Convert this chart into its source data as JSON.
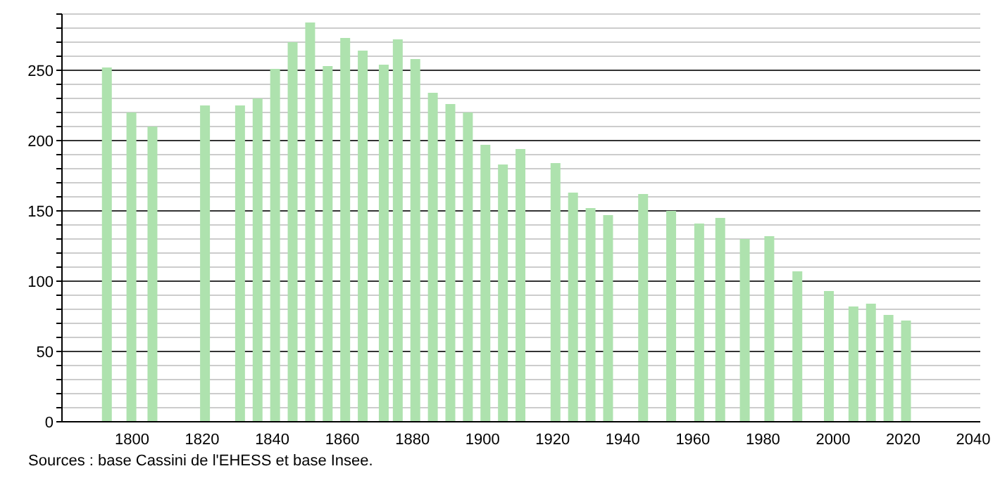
{
  "chart_data": {
    "type": "bar",
    "x": [
      1793,
      1800,
      1806,
      1821,
      1831,
      1836,
      1841,
      1846,
      1851,
      1856,
      1861,
      1866,
      1872,
      1876,
      1881,
      1886,
      1891,
      1896,
      1901,
      1906,
      1911,
      1921,
      1926,
      1931,
      1936,
      1946,
      1954,
      1962,
      1968,
      1975,
      1982,
      1990,
      1999,
      2006,
      2011,
      2016,
      2021
    ],
    "values": [
      252,
      220,
      210,
      225,
      225,
      230,
      251,
      270,
      284,
      253,
      273,
      264,
      254,
      272,
      258,
      234,
      226,
      220,
      197,
      183,
      194,
      184,
      163,
      152,
      147,
      162,
      150,
      141,
      145,
      130,
      132,
      107,
      93,
      82,
      84,
      76,
      72
    ],
    "color": "#aee2ae",
    "xlim": [
      1780,
      2042
    ],
    "xticks": [
      1800,
      1820,
      1840,
      1860,
      1880,
      1900,
      1920,
      1940,
      1960,
      1980,
      2000,
      2020,
      2040
    ],
    "ylim": [
      0,
      290
    ],
    "yticks": [
      0,
      {
        "value": 10,
        "label": null
      },
      {
        "value": 20,
        "label": null
      },
      {
        "value": 30,
        "label": null
      },
      {
        "value": 40,
        "label": null
      },
      50,
      {
        "value": 60,
        "label": null
      },
      {
        "value": 70,
        "label": null
      },
      {
        "value": 80,
        "label": null
      },
      {
        "value": 90,
        "label": null
      },
      100,
      {
        "value": 110,
        "label": null
      },
      {
        "value": 120,
        "label": null
      },
      {
        "value": 130,
        "label": null
      },
      {
        "value": 140,
        "label": null
      },
      150,
      {
        "value": 160,
        "label": null
      },
      {
        "value": 170,
        "label": null
      },
      {
        "value": 180,
        "label": null
      },
      {
        "value": 190,
        "label": null
      },
      200,
      {
        "value": 210,
        "label": null
      },
      {
        "value": 220,
        "label": null
      },
      {
        "value": 230,
        "label": null
      },
      {
        "value": 240,
        "label": null
      },
      250,
      {
        "value": 260,
        "label": null
      },
      {
        "value": 270,
        "label": null
      },
      {
        "value": 280,
        "label": null
      },
      {
        "value": 290,
        "label": null
      }
    ],
    "grid": "y",
    "annotations": [
      "Sources : base Cassini de l'EHESS et base Insee."
    ]
  }
}
